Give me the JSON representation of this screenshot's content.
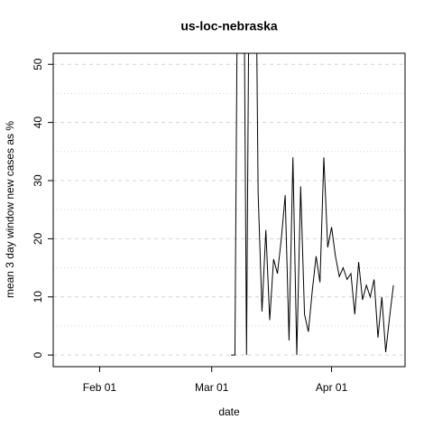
{
  "chart_data": {
    "type": "line",
    "title": "us-loc-nebraska",
    "x_label": "date",
    "y_label": "mean  3  day window new cases as %",
    "x": [
      "Mar 06",
      "Mar 07",
      "Mar 08",
      "Mar 09",
      "Mar 10",
      "Mar 11",
      "Mar 12",
      "Mar 13",
      "Mar 14",
      "Mar 15",
      "Mar 16",
      "Mar 17",
      "Mar 18",
      "Mar 19",
      "Mar 20",
      "Mar 21",
      "Mar 22",
      "Mar 23",
      "Mar 24",
      "Mar 25",
      "Mar 26",
      "Mar 27",
      "Mar 28",
      "Mar 29",
      "Mar 30",
      "Mar 31",
      "Apr 01",
      "Apr 02",
      "Apr 03",
      "Apr 04",
      "Apr 05",
      "Apr 06",
      "Apr 07",
      "Apr 08",
      "Apr 09",
      "Apr 10",
      "Apr 11",
      "Apr 12",
      "Apr 13",
      "Apr 14",
      "Apr 15",
      "Apr 16",
      "Apr 17"
    ],
    "series": [
      {
        "color": "#000000",
        "values": [
          0,
          0,
          100,
          100,
          0,
          100,
          100,
          28,
          7.5,
          21.5,
          6,
          16.5,
          14,
          20,
          27.5,
          2.5,
          34,
          0,
          29,
          7,
          4,
          11,
          17,
          12.5,
          34,
          18.5,
          22,
          17,
          13.5,
          15,
          13,
          14,
          7,
          16,
          9.5,
          12,
          10,
          13,
          3,
          10,
          0.5,
          6.5,
          12
        ]
      }
    ],
    "xlim": [
      "Jan 20",
      "Apr 20"
    ],
    "xticks": [
      "Feb 01",
      "Mar 01",
      "Apr 01"
    ],
    "ylim": [
      -2,
      51.9
    ],
    "yticks": [
      0,
      10,
      20,
      30,
      40,
      50
    ],
    "minor_grid": [
      5,
      15,
      25,
      35,
      45
    ],
    "grid": true
  }
}
